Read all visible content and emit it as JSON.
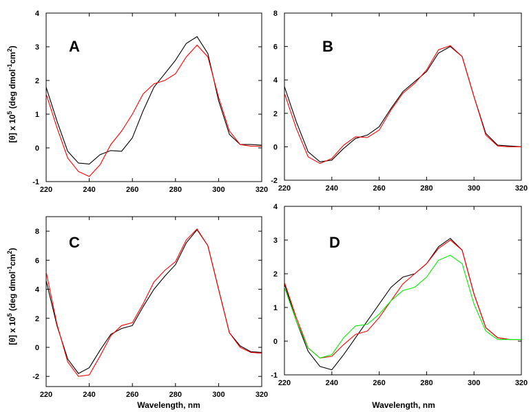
{
  "chart_data": [
    {
      "type": "line",
      "panel_label": "A",
      "x_ticks": [
        "220",
        "240",
        "260",
        "280",
        "300",
        "320"
      ],
      "y_ticks": [
        "-1",
        "0",
        "1",
        "2",
        "3",
        "4"
      ],
      "xlim": [
        220,
        320
      ],
      "ylim": [
        -1,
        4
      ],
      "series": [
        {
          "color": "#000000",
          "x": [
            220,
            225,
            230,
            235,
            240,
            245,
            250,
            255,
            260,
            265,
            270,
            275,
            280,
            285,
            290,
            295,
            300,
            305,
            310,
            315,
            320
          ],
          "y": [
            1.8,
            0.8,
            -0.1,
            -0.45,
            -0.48,
            -0.2,
            -0.08,
            -0.1,
            0.3,
            1.1,
            1.8,
            2.2,
            2.6,
            3.1,
            3.3,
            2.8,
            1.4,
            0.4,
            0.1,
            0.1,
            0.08
          ]
        },
        {
          "color": "#ff0000",
          "x": [
            220,
            225,
            230,
            235,
            240,
            245,
            250,
            255,
            260,
            265,
            270,
            275,
            280,
            285,
            290,
            295,
            300,
            305,
            310,
            315,
            320
          ],
          "y": [
            1.6,
            0.6,
            -0.3,
            -0.7,
            -0.85,
            -0.5,
            0.1,
            0.5,
            1.0,
            1.6,
            1.9,
            2.0,
            2.2,
            2.7,
            3.05,
            2.7,
            1.5,
            0.5,
            0.1,
            0.05,
            0.05
          ]
        }
      ]
    },
    {
      "type": "line",
      "panel_label": "B",
      "x_ticks": [
        "220",
        "240",
        "260",
        "280",
        "300",
        "320"
      ],
      "y_ticks": [
        "-2",
        "0",
        "2",
        "4",
        "6",
        "8"
      ],
      "xlim": [
        220,
        320
      ],
      "ylim": [
        -2,
        8
      ],
      "series": [
        {
          "color": "#000000",
          "x": [
            220,
            225,
            230,
            235,
            240,
            245,
            250,
            255,
            260,
            265,
            270,
            275,
            280,
            285,
            290,
            295,
            300,
            305,
            310,
            315,
            320
          ],
          "y": [
            3.6,
            1.5,
            -0.3,
            -0.9,
            -0.8,
            -0.1,
            0.5,
            0.7,
            1.2,
            2.3,
            3.3,
            3.9,
            4.5,
            5.6,
            6.0,
            5.4,
            3.0,
            0.8,
            0.1,
            0.05,
            0.0
          ]
        },
        {
          "color": "#ff0000",
          "x": [
            220,
            225,
            230,
            235,
            240,
            245,
            250,
            255,
            260,
            265,
            270,
            275,
            280,
            285,
            290,
            295,
            300,
            305,
            310,
            315,
            320
          ],
          "y": [
            3.2,
            1.1,
            -0.6,
            -1.0,
            -0.7,
            0.1,
            0.6,
            0.55,
            1.0,
            2.2,
            3.2,
            3.8,
            4.6,
            5.8,
            6.05,
            5.4,
            3.0,
            0.7,
            0.05,
            0.0,
            0.0
          ]
        }
      ]
    },
    {
      "type": "line",
      "panel_label": "C",
      "x_ticks": [
        "220",
        "240",
        "260",
        "280",
        "300",
        "320"
      ],
      "y_ticks": [
        "-2",
        "0",
        "2",
        "4",
        "6",
        "8"
      ],
      "xlim": [
        220,
        320
      ],
      "ylim": [
        -2.7,
        9
      ],
      "series": [
        {
          "color": "#000000",
          "x": [
            220,
            225,
            230,
            235,
            240,
            245,
            250,
            255,
            260,
            265,
            270,
            275,
            280,
            285,
            290,
            295,
            300,
            305,
            310,
            315,
            320
          ],
          "y": [
            4.6,
            1.5,
            -0.8,
            -1.8,
            -1.4,
            -0.2,
            0.9,
            1.3,
            1.5,
            2.8,
            4.0,
            4.9,
            5.7,
            7.2,
            8.1,
            7.0,
            4.0,
            1.0,
            0.1,
            -0.3,
            -0.35
          ]
        },
        {
          "color": "#ff0000",
          "x": [
            220,
            225,
            230,
            235,
            240,
            245,
            250,
            255,
            260,
            265,
            270,
            275,
            280,
            285,
            290,
            295,
            300,
            305,
            310,
            315,
            320
          ],
          "y": [
            5.2,
            1.6,
            -1.0,
            -2.0,
            -1.9,
            -0.6,
            0.8,
            1.5,
            1.7,
            3.0,
            4.5,
            5.3,
            5.9,
            7.4,
            8.15,
            7.0,
            4.0,
            1.0,
            0.0,
            -0.35,
            -0.4
          ]
        }
      ]
    },
    {
      "type": "line",
      "panel_label": "D",
      "x_ticks": [
        "220",
        "240",
        "260",
        "280",
        "300",
        "320"
      ],
      "y_ticks": [
        "-1",
        "0",
        "1",
        "2",
        "3",
        "4"
      ],
      "xlim": [
        220,
        320
      ],
      "ylim": [
        -1,
        4
      ],
      "xlabel": "Wavelength, nm",
      "series": [
        {
          "color": "#000000",
          "x": [
            220,
            225,
            230,
            235,
            240,
            245,
            250,
            255,
            260,
            265,
            270,
            275,
            280,
            285,
            290,
            295,
            300,
            305,
            310,
            315,
            320
          ],
          "y": [
            1.7,
            0.6,
            -0.3,
            -0.75,
            -0.85,
            -0.4,
            0.1,
            0.6,
            1.1,
            1.6,
            1.9,
            2.0,
            2.3,
            2.8,
            3.05,
            2.7,
            1.4,
            0.4,
            0.1,
            0.05,
            0.05
          ]
        },
        {
          "color": "#ff0000",
          "x": [
            220,
            225,
            230,
            235,
            240,
            245,
            250,
            255,
            260,
            265,
            270,
            275,
            280,
            285,
            290,
            295,
            300,
            305,
            310,
            315,
            320
          ],
          "y": [
            1.75,
            0.7,
            -0.2,
            -0.5,
            -0.45,
            -0.1,
            0.2,
            0.3,
            0.7,
            1.2,
            1.7,
            2.0,
            2.3,
            2.75,
            3.0,
            2.7,
            1.4,
            0.4,
            0.1,
            0.05,
            0.05
          ]
        },
        {
          "color": "#00ee00",
          "x": [
            220,
            225,
            230,
            235,
            240,
            245,
            250,
            255,
            260,
            265,
            270,
            275,
            280,
            285,
            290,
            295,
            300,
            305,
            310,
            315,
            320
          ],
          "y": [
            1.6,
            0.6,
            -0.2,
            -0.5,
            -0.4,
            0.1,
            0.45,
            0.5,
            0.8,
            1.2,
            1.5,
            1.6,
            1.9,
            2.4,
            2.55,
            2.3,
            1.1,
            0.3,
            0.05,
            0.05,
            0.05
          ]
        }
      ]
    }
  ],
  "shared": {
    "ylabel_prefix": "[θ] x 10",
    "ylabel_exp1": "5",
    "ylabel_mid": " (deg dmol",
    "ylabel_exp2": "-1",
    "ylabel_mid2": "cm",
    "ylabel_exp3": "2",
    "ylabel_suffix": ")",
    "xlabel": "Wavelength, nm"
  }
}
